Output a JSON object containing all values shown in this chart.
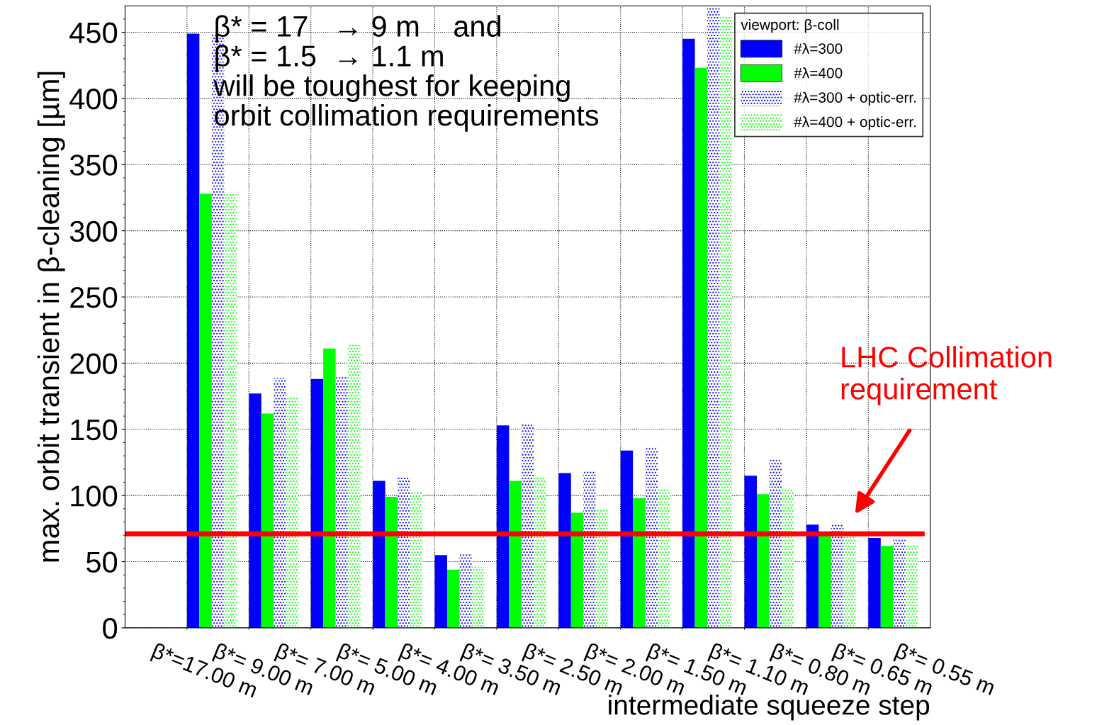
{
  "chart_data": {
    "type": "bar",
    "xlabel": "intermediate squeeze step",
    "ylabel": "max. orbit transient in β-cleaning [µm]",
    "legend_title": "viewport: β-coll",
    "legend": "top right",
    "grid": true,
    "categories": [
      "β*=17.00 m",
      "β*= 9.00 m",
      "β*= 7.00 m",
      "β*= 5.00 m",
      "β*= 4.00 m",
      "β*= 3.50 m",
      "β*= 2.50 m",
      "β*= 2.00 m",
      "β*= 1.50 m",
      "β*= 1.10 m",
      "β*= 0.80 m",
      "β*= 0.65 m",
      "β*= 0.55 m"
    ],
    "ylim": [
      0,
      470
    ],
    "yticks": [
      0,
      50,
      100,
      150,
      200,
      250,
      300,
      350,
      400,
      450
    ],
    "series": [
      {
        "name": "#λ=300",
        "color": "#0000ff",
        "values": [
          0,
          449,
          177,
          188,
          111,
          55,
          153,
          117,
          134,
          445,
          115,
          78,
          68
        ]
      },
      {
        "name": "#λ=400",
        "color": "#00ff00",
        "values": [
          0,
          328,
          162,
          211,
          99,
          44,
          111,
          87,
          98,
          423,
          101,
          70,
          62
        ]
      },
      {
        "name": "#λ=300 + optic-err.",
        "color": "#0000ff",
        "values": [
          0,
          449,
          189,
          190,
          114,
          56,
          154,
          119,
          137,
          469,
          127,
          78,
          68
        ]
      },
      {
        "name": "#λ=400 + optic-err.",
        "color": "#00ff00",
        "values": [
          0,
          328,
          174,
          214,
          103,
          46,
          114,
          89,
          106,
          462,
          105,
          70,
          63
        ]
      }
    ],
    "ref_lines": [
      {
        "axis": "y",
        "value": 71,
        "color": "#ff0000"
      }
    ],
    "annotations": [
      "β* = 17   → 9 m    and\nβ* = 1.5  → 1.1 m\nwill be toughest for keeping\norbit collimation requirements",
      "LHC Collimation\nrequirement"
    ]
  }
}
